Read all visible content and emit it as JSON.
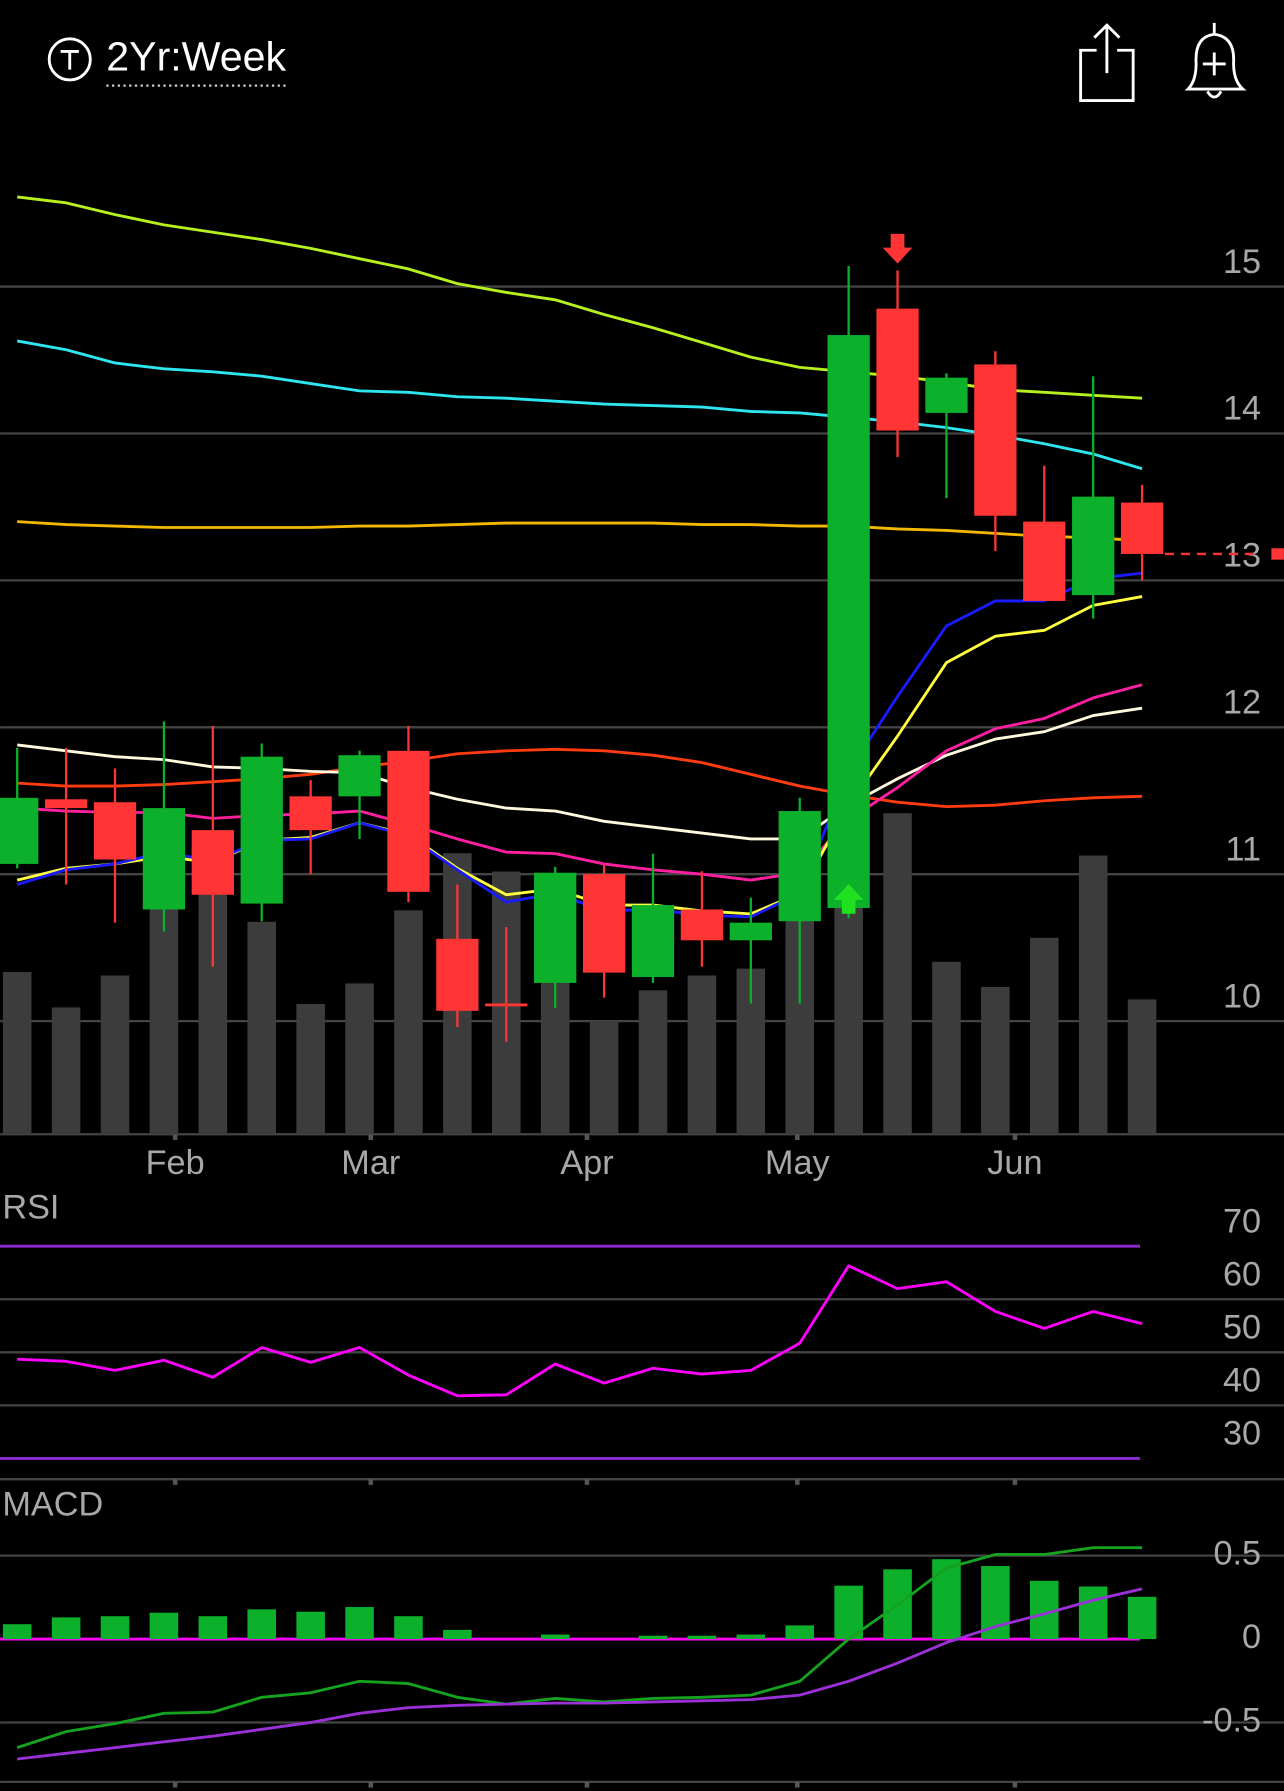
{
  "header": {
    "period": "2Yr:Week"
  },
  "chart_data": [
    {
      "type": "candlestick",
      "x": [
        0,
        1,
        2,
        3,
        4,
        5,
        6,
        7,
        8,
        9,
        10,
        11,
        12,
        13,
        14,
        15,
        16,
        17,
        18,
        19,
        20,
        21,
        22,
        23
      ],
      "open": [
        11.07,
        11.51,
        11.49,
        10.76,
        11.3,
        10.8,
        11.53,
        11.53,
        11.84,
        10.56,
        10.12,
        10.26,
        11.0,
        10.3,
        10.76,
        10.55,
        10.68,
        10.77,
        14.85,
        14.14,
        14.47,
        13.4,
        12.9,
        13.53
      ],
      "high": [
        11.86,
        11.86,
        11.72,
        12.04,
        12.01,
        11.89,
        11.64,
        11.84,
        12.01,
        10.93,
        10.64,
        11.05,
        11.06,
        11.14,
        11.02,
        10.84,
        11.52,
        15.14,
        15.11,
        14.41,
        14.56,
        13.78,
        14.39,
        13.65
      ],
      "low": [
        11.04,
        10.93,
        10.67,
        10.61,
        10.37,
        10.68,
        11.0,
        11.24,
        10.81,
        9.96,
        9.86,
        10.09,
        10.16,
        10.26,
        10.37,
        10.12,
        10.12,
        10.7,
        13.84,
        13.56,
        13.2,
        12.86,
        12.74,
        13.0
      ],
      "close": [
        11.52,
        11.45,
        11.1,
        11.45,
        10.86,
        11.8,
        11.3,
        11.81,
        10.88,
        10.07,
        10.11,
        11.01,
        10.33,
        10.79,
        10.55,
        10.67,
        11.43,
        14.67,
        14.02,
        14.38,
        13.44,
        12.86,
        13.57,
        13.18
      ],
      "up_color": "#0db02b",
      "down_color": "#ff3535",
      "xlim": [
        -0.35,
        25.9
      ],
      "xticks": [
        {
          "value": 3.23,
          "label": "Feb"
        },
        {
          "value": 7.23,
          "label": "Mar"
        },
        {
          "value": 11.65,
          "label": "Apr"
        },
        {
          "value": 15.95,
          "label": "May"
        },
        {
          "value": 20.4,
          "label": "Jun"
        }
      ],
      "ylim": [
        9.23,
        15.94
      ],
      "yticks": [
        10,
        11,
        12,
        13,
        14,
        15
      ],
      "grid": true,
      "y2lim": [
        0,
        8.63
      ],
      "series": [
        {
          "type": "bar",
          "axis": "y2",
          "color": "#3c3c3c",
          "values": [
            1.42,
            1.11,
            1.39,
            2.1,
            2.1,
            1.86,
            1.14,
            1.32,
            1.96,
            2.46,
            2.3,
            1.5,
            0.99,
            1.26,
            1.39,
            1.45,
            1.9,
            2.2,
            2.81,
            1.51,
            1.29,
            1.72,
            2.44,
            1.18
          ]
        },
        {
          "type": "line",
          "color": "#b6f01e",
          "values": [
            15.61,
            15.57,
            15.49,
            15.42,
            15.37,
            15.32,
            15.26,
            15.19,
            15.12,
            15.02,
            14.96,
            14.91,
            14.81,
            14.72,
            14.62,
            14.52,
            14.45,
            14.42,
            14.39,
            14.35,
            14.3,
            14.28,
            14.26,
            14.24
          ]
        },
        {
          "type": "line",
          "color": "#2de6f0",
          "values": [
            14.63,
            14.57,
            14.48,
            14.44,
            14.42,
            14.39,
            14.34,
            14.29,
            14.28,
            14.25,
            14.24,
            14.22,
            14.2,
            14.19,
            14.18,
            14.15,
            14.14,
            14.11,
            14.08,
            14.04,
            13.99,
            13.93,
            13.86,
            13.76
          ]
        },
        {
          "type": "line",
          "color": "#f5b800",
          "values": [
            13.4,
            13.38,
            13.37,
            13.36,
            13.36,
            13.36,
            13.36,
            13.37,
            13.37,
            13.38,
            13.39,
            13.39,
            13.39,
            13.39,
            13.38,
            13.38,
            13.37,
            13.37,
            13.35,
            13.34,
            13.32,
            13.3,
            13.29,
            13.27
          ]
        },
        {
          "type": "line",
          "color": "#ff3b10",
          "values": [
            11.62,
            11.6,
            11.6,
            11.61,
            11.63,
            11.65,
            11.68,
            11.73,
            11.77,
            11.82,
            11.84,
            11.85,
            11.84,
            11.81,
            11.76,
            11.68,
            11.6,
            11.54,
            11.49,
            11.46,
            11.47,
            11.5,
            11.52,
            11.53
          ]
        },
        {
          "type": "line",
          "color": "#fff8dc",
          "values": [
            11.88,
            11.84,
            11.8,
            11.78,
            11.73,
            11.72,
            11.7,
            11.69,
            11.59,
            11.51,
            11.45,
            11.43,
            11.36,
            11.32,
            11.28,
            11.24,
            11.24,
            11.47,
            11.65,
            11.81,
            11.92,
            11.97,
            12.08,
            12.13
          ]
        },
        {
          "type": "line",
          "color": "#ff1fa0",
          "values": [
            11.45,
            11.43,
            11.42,
            11.42,
            11.38,
            11.4,
            11.41,
            11.43,
            11.34,
            11.24,
            11.15,
            11.14,
            11.07,
            11.03,
            11.0,
            10.96,
            11.01,
            11.37,
            11.59,
            11.84,
            11.99,
            12.06,
            12.2,
            12.29
          ]
        },
        {
          "type": "line",
          "color": "#ffff40",
          "values": [
            10.96,
            11.04,
            11.07,
            11.12,
            11.08,
            11.23,
            11.25,
            11.35,
            11.27,
            11.04,
            10.86,
            10.9,
            10.79,
            10.79,
            10.75,
            10.73,
            10.87,
            11.47,
            11.94,
            12.44,
            12.62,
            12.66,
            12.83,
            12.89
          ]
        },
        {
          "type": "line",
          "color": "#1a1aff",
          "values": [
            10.93,
            11.03,
            11.07,
            11.15,
            11.09,
            11.23,
            11.24,
            11.35,
            11.26,
            11.03,
            10.81,
            10.87,
            10.75,
            10.76,
            10.72,
            10.71,
            10.87,
            11.7,
            12.21,
            12.69,
            12.86,
            12.86,
            13.01,
            13.05
          ]
        }
      ]
    },
    {
      "type": "line",
      "title": "RSI",
      "x": [
        0,
        1,
        2,
        3,
        4,
        5,
        6,
        7,
        8,
        9,
        10,
        11,
        12,
        13,
        14,
        15,
        16,
        17,
        18,
        19,
        20,
        21,
        22,
        23
      ],
      "xlim": [
        -0.35,
        25.9
      ],
      "xticks": [
        {
          "value": 3.23,
          "label": ""
        },
        {
          "value": 7.23,
          "label": ""
        },
        {
          "value": 11.65,
          "label": ""
        },
        {
          "value": 15.95,
          "label": ""
        },
        {
          "value": 20.4,
          "label": ""
        }
      ],
      "ylim": [
        26.1,
        79.9
      ],
      "yticks": [
        30,
        40,
        50,
        60,
        70
      ],
      "grid": true,
      "bound_color": "#8e2bd0",
      "series": [
        {
          "color": "#ff00ff",
          "values": [
            48.7,
            48.3,
            46.6,
            48.5,
            45.3,
            50.9,
            48.1,
            50.9,
            45.7,
            41.8,
            42.0,
            47.8,
            44.2,
            47.0,
            45.9,
            46.6,
            51.7,
            66.3,
            62.0,
            63.3,
            57.7,
            54.5,
            57.7,
            55.4
          ]
        }
      ]
    },
    {
      "type": "macd",
      "title": "MACD",
      "x": [
        0,
        1,
        2,
        3,
        4,
        5,
        6,
        7,
        8,
        9,
        10,
        11,
        12,
        13,
        14,
        15,
        16,
        17,
        18,
        19,
        20,
        21,
        22,
        23
      ],
      "xlim": [
        -0.35,
        25.9
      ],
      "ylim": [
        -0.856,
        0.89
      ],
      "yticks": [
        -0.5,
        0,
        0.5
      ],
      "grid": true,
      "zero_color": "#ff00ff",
      "series": [
        {
          "type": "bar",
          "color": "#0db02b",
          "values": [
            0.089,
            0.13,
            0.137,
            0.158,
            0.137,
            0.178,
            0.164,
            0.192,
            0.137,
            0.055,
            0,
            0.027,
            0,
            0.02,
            0.02,
            0.027,
            0.082,
            0.32,
            0.418,
            0.479,
            0.438,
            0.349,
            0.315,
            0.253
          ]
        },
        {
          "type": "line",
          "color": "#14a21f",
          "values": [
            -0.651,
            -0.555,
            -0.507,
            -0.445,
            -0.438,
            -0.349,
            -0.322,
            -0.253,
            -0.267,
            -0.349,
            -0.39,
            -0.356,
            -0.377,
            -0.356,
            -0.349,
            -0.336,
            -0.253,
            0,
            0.205,
            0.425,
            0.507,
            0.507,
            0.548,
            0.548
          ]
        },
        {
          "type": "line",
          "color": "#9b30d9",
          "values": [
            -0.719,
            -0.685,
            -0.651,
            -0.616,
            -0.582,
            -0.541,
            -0.5,
            -0.445,
            -0.411,
            -0.397,
            -0.39,
            -0.384,
            -0.384,
            -0.377,
            -0.37,
            -0.363,
            -0.336,
            -0.253,
            -0.144,
            -0.021,
            0.075,
            0.151,
            0.233,
            0.301
          ]
        }
      ]
    }
  ]
}
